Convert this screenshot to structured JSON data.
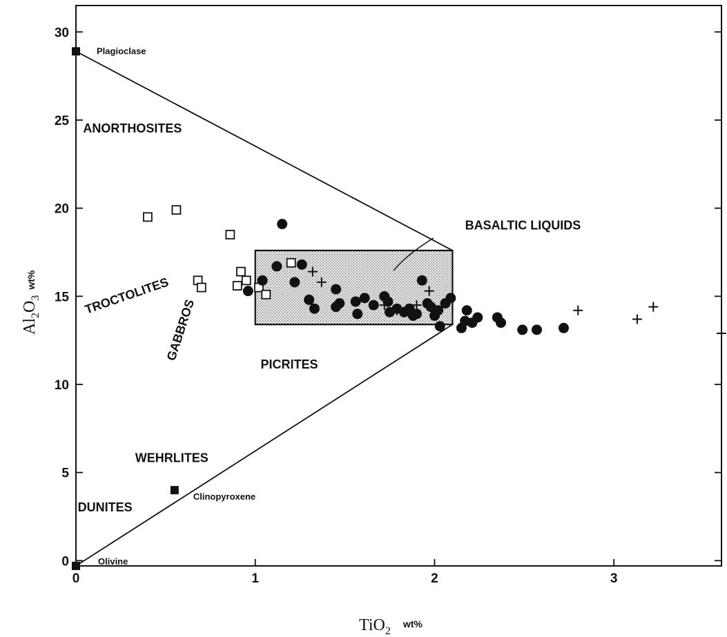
{
  "chart_data": {
    "type": "scatter",
    "xlabel": {
      "main": "TiO",
      "sub": "2",
      "unit": "wt%"
    },
    "ylabel": {
      "main": "Al",
      "sub1": "2",
      "mid": "O",
      "sub2": "3",
      "unit": "wt%"
    },
    "xlim": [
      0,
      3.6
    ],
    "ylim": [
      -0.3,
      31.5
    ],
    "xticks": [
      0,
      1,
      2,
      3
    ],
    "yticks": [
      0,
      5,
      10,
      15,
      20,
      25,
      30
    ],
    "grid": false,
    "legend": "none",
    "basaltic_box": {
      "x": [
        1.0,
        2.1
      ],
      "y": [
        13.4,
        17.6
      ]
    },
    "field_lines": [
      {
        "from": [
          0,
          28.9
        ],
        "to": [
          2.1,
          17.6
        ]
      },
      {
        "from": [
          0,
          -0.3
        ],
        "to": [
          2.1,
          13.4
        ]
      }
    ],
    "end_members": [
      {
        "name": "Plagioclase",
        "x": 0.0,
        "y": 28.9
      },
      {
        "name": "Clinopyroxene",
        "x": 0.55,
        "y": 4.0
      },
      {
        "name": "Olivine",
        "x": 0.0,
        "y": -0.3
      }
    ],
    "field_labels": [
      {
        "text": "ANORTHOSITES",
        "x": 0.04,
        "y": 24.3,
        "rotate": 0
      },
      {
        "text": "TROCTOLITES",
        "x": 0.06,
        "y": 14.0,
        "rotate": -19
      },
      {
        "text": "GABBROS",
        "x": 0.55,
        "y": 11.3,
        "rotate": -72
      },
      {
        "text": "PICRITES",
        "x": 1.03,
        "y": 10.9,
        "rotate": 0
      },
      {
        "text": "WEHRLITES",
        "x": 0.33,
        "y": 5.6,
        "rotate": 0
      },
      {
        "text": "DUNITES",
        "x": 0.01,
        "y": 2.8,
        "rotate": 0
      },
      {
        "text": "BASALTIC LIQUIDS",
        "x": 2.17,
        "y": 18.8,
        "rotate": 0
      }
    ],
    "series": [
      {
        "marker": "open-square",
        "points": [
          [
            0.4,
            19.5
          ],
          [
            0.56,
            19.9
          ],
          [
            0.68,
            15.9
          ],
          [
            0.7,
            15.5
          ],
          [
            0.86,
            18.5
          ],
          [
            0.92,
            16.4
          ],
          [
            0.95,
            15.9
          ],
          [
            0.9,
            15.6
          ],
          [
            1.02,
            15.5
          ],
          [
            1.06,
            15.1
          ],
          [
            1.2,
            16.9
          ]
        ]
      },
      {
        "marker": "filled-circle",
        "points": [
          [
            1.15,
            19.1
          ],
          [
            0.96,
            15.3
          ],
          [
            1.04,
            15.9
          ],
          [
            1.12,
            16.7
          ],
          [
            1.22,
            15.8
          ],
          [
            1.26,
            16.8
          ],
          [
            1.3,
            14.8
          ],
          [
            1.33,
            14.3
          ],
          [
            1.45,
            15.4
          ],
          [
            1.47,
            14.6
          ],
          [
            1.45,
            14.4
          ],
          [
            1.56,
            14.7
          ],
          [
            1.57,
            14.0
          ],
          [
            1.61,
            14.9
          ],
          [
            1.66,
            14.5
          ],
          [
            1.72,
            15.0
          ],
          [
            1.74,
            14.7
          ],
          [
            1.75,
            14.1
          ],
          [
            1.79,
            14.3
          ],
          [
            1.83,
            14.1
          ],
          [
            1.86,
            14.3
          ],
          [
            1.88,
            13.9
          ],
          [
            1.9,
            14.0
          ],
          [
            1.93,
            15.9
          ],
          [
            1.96,
            14.6
          ],
          [
            1.98,
            14.4
          ],
          [
            2.0,
            13.9
          ],
          [
            2.02,
            14.2
          ],
          [
            2.03,
            13.3
          ],
          [
            2.06,
            14.6
          ],
          [
            2.09,
            14.9
          ],
          [
            2.15,
            13.2
          ],
          [
            2.17,
            13.6
          ],
          [
            2.18,
            14.2
          ],
          [
            2.21,
            13.5
          ],
          [
            2.24,
            13.8
          ],
          [
            2.35,
            13.8
          ],
          [
            2.37,
            13.5
          ],
          [
            2.49,
            13.1
          ],
          [
            2.57,
            13.1
          ],
          [
            2.72,
            13.2
          ]
        ]
      },
      {
        "marker": "plus",
        "points": [
          [
            1.32,
            16.4
          ],
          [
            1.37,
            15.8
          ],
          [
            1.72,
            14.5
          ],
          [
            1.79,
            14.2
          ],
          [
            1.9,
            14.5
          ],
          [
            1.97,
            15.3
          ],
          [
            2.8,
            14.2
          ],
          [
            3.13,
            13.7
          ],
          [
            3.22,
            14.4
          ],
          [
            3.6,
            12.9
          ]
        ]
      }
    ]
  }
}
